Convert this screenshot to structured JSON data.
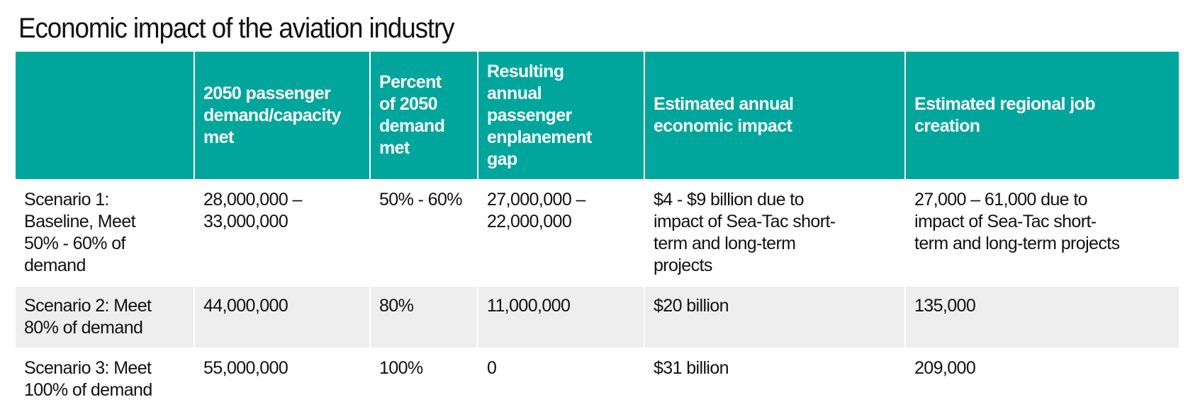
{
  "title": "Economic impact of the aviation industry",
  "colors": {
    "header_bg": "#00A69C",
    "header_text": "#FFFFFF",
    "alt_row_bg": "#EEEEEE"
  },
  "table": {
    "headers": [
      "",
      "2050 passenger\ndemand/capacity\nmet",
      "Percent\nof 2050\ndemand\nmet",
      "Resulting\nannual\npassenger\nenplanement\ngap",
      "Estimated annual\neconomic impact",
      "Estimated regional job\ncreation"
    ],
    "rows": [
      [
        "Scenario 1:\nBaseline, Meet\n50% - 60% of\ndemand",
        "28,000,000 –\n33,000,000",
        "50% - 60%",
        "27,000,000 –\n22,000,000",
        "$4 - $9 billion due to\nimpact of Sea-Tac short-\nterm and long-term\nprojects",
        "27,000 – 61,000 due to\nimpact of Sea-Tac short-\nterm and long-term projects"
      ],
      [
        "Scenario 2: Meet\n80% of demand",
        "44,000,000",
        "80%",
        "11,000,000",
        "$20 billion",
        "135,000"
      ],
      [
        "Scenario 3: Meet\n100% of demand",
        "55,000,000",
        "100%",
        "0",
        "$31 billion",
        "209,000"
      ]
    ]
  }
}
